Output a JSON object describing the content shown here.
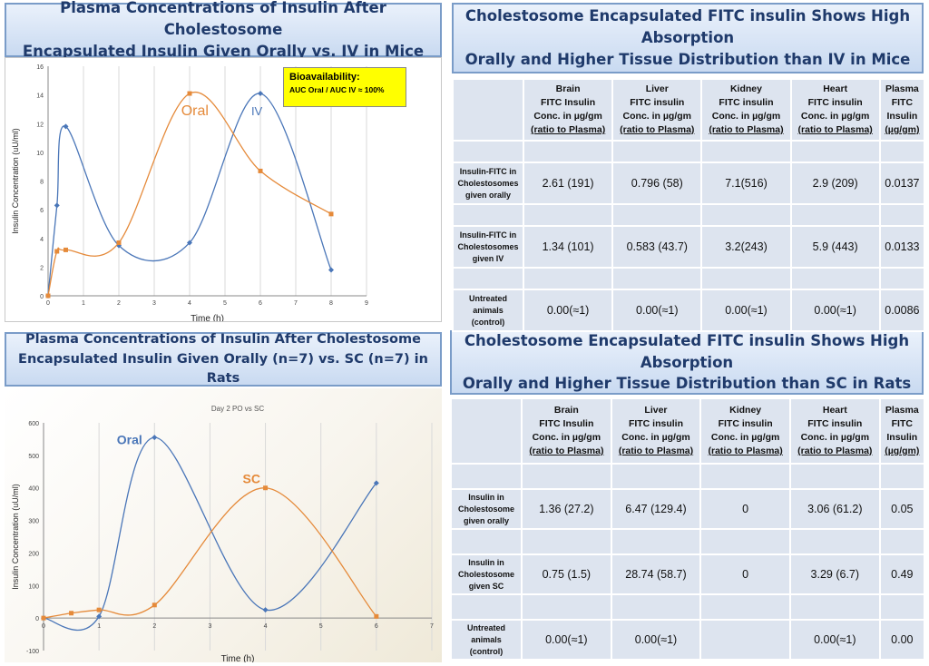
{
  "headers": {
    "mice_chart": [
      "Plasma Concentrations of Insulin After Cholestosome",
      "Encapsulated Insulin Given Orally vs. IV in Mice"
    ],
    "mice_table": [
      "Cholestosome Encapsulated FITC insulin Shows High Absorption",
      "Orally and Higher Tissue Distribution than IV in Mice"
    ],
    "rats_chart": [
      "Plasma Concentrations of Insulin After Cholestosome",
      "Encapsulated Insulin Given Orally (n=7) vs. SC (n=7) in Rats"
    ],
    "rats_table": [
      "Cholestosome Encapsulated FITC insulin Shows High Absorption",
      "Orally and Higher Tissue Distribution than SC in Rats"
    ]
  },
  "colors": {
    "blue": "#4a76b8",
    "orange": "#e58a3a",
    "header_text": "#1f3a6b",
    "annotation_bg": "#ffff00"
  },
  "chart_data": [
    {
      "type": "line",
      "title": "",
      "xlabel": "Time (h)",
      "ylabel": "Insulin Concentration (uU/ml)",
      "xlim": [
        0,
        9
      ],
      "ylim": [
        0,
        16
      ],
      "xticks": [
        "0",
        "1",
        "2",
        "3",
        "4",
        "5",
        "6",
        "7",
        "8",
        "9"
      ],
      "yticks": [
        "0",
        "2",
        "4",
        "6",
        "8",
        "10",
        "12",
        "14",
        "16"
      ],
      "series": [
        {
          "name": "IV",
          "color": "#4a76b8",
          "marker": "diamond",
          "x": [
            0,
            0.25,
            0.5,
            2,
            4,
            6,
            8
          ],
          "y": [
            0,
            6.3,
            11.8,
            3.5,
            3.7,
            14.1,
            1.8
          ]
        },
        {
          "name": "Oral",
          "color": "#e58a3a",
          "marker": "square",
          "x": [
            0,
            0.25,
            0.5,
            2,
            4,
            6,
            8
          ],
          "y": [
            0,
            3.1,
            3.2,
            3.7,
            14.1,
            8.7,
            5.7
          ]
        }
      ],
      "labels": {
        "oral": "Oral",
        "iv": "IV"
      },
      "annotation": {
        "title": "Bioavailability:",
        "text": "AUC Oral / AUC IV ≈ 100%"
      }
    },
    {
      "type": "line",
      "title": "Day 2 PO vs SC",
      "xlabel": "Time (h)",
      "ylabel": "Insulin Concentration (uU/ml)",
      "xlim": [
        0,
        7
      ],
      "ylim": [
        -100,
        600
      ],
      "xticks": [
        "0",
        "1",
        "2",
        "3",
        "4",
        "5",
        "6",
        "7"
      ],
      "yticks": [
        "-100",
        "0",
        "100",
        "200",
        "300",
        "400",
        "500",
        "600"
      ],
      "series": [
        {
          "name": "Oral",
          "color": "#4a76b8",
          "marker": "diamond",
          "x": [
            0,
            1,
            2,
            4,
            6
          ],
          "y": [
            0,
            5,
            555,
            25,
            415
          ]
        },
        {
          "name": "SC",
          "color": "#e58a3a",
          "marker": "square",
          "x": [
            0,
            0.5,
            1,
            2,
            4,
            6
          ],
          "y": [
            0,
            15,
            25,
            40,
            400,
            5
          ]
        }
      ],
      "labels": {
        "oral": "Oral",
        "sc": "SC"
      }
    }
  ],
  "mice_table": {
    "columns": [
      {
        "lines": [
          "Brain",
          "FITC Insulin",
          "Conc. in µg/gm",
          "(ratio to Plasma)"
        ]
      },
      {
        "lines": [
          "Liver",
          "FITC insulin",
          "Conc. in µg/gm",
          "(ratio to Plasma)"
        ]
      },
      {
        "lines": [
          "Kidney",
          "FITC insulin",
          "Conc. in µg/gm",
          "(ratio to Plasma)"
        ]
      },
      {
        "lines": [
          "Heart",
          "FITC insulin",
          "Conc. in µg/gm",
          "(ratio to Plasma)"
        ]
      },
      {
        "lines": [
          "Plasma",
          "FITC",
          "Insulin",
          "(µg/gm)"
        ]
      }
    ],
    "rows": [
      {
        "label": [
          "Insulin-FITC in",
          "Cholestosomes",
          "given orally"
        ],
        "values": [
          "2.61 (191)",
          "0.796 (58)",
          "7.1(516)",
          "2.9 (209)",
          "0.0137"
        ]
      },
      {
        "label": [
          "Insulin-FITC in",
          "Cholestosomes",
          "given IV"
        ],
        "values": [
          "1.34 (101)",
          "0.583 (43.7)",
          "3.2(243)",
          "5.9 (443)",
          "0.0133"
        ]
      },
      {
        "label": [
          "Untreated",
          "animals",
          "(control)"
        ],
        "values": [
          "0.00(≈1)",
          "0.00(≈1)",
          "0.00(≈1)",
          "0.00(≈1)",
          "0.0086"
        ]
      }
    ]
  },
  "rats_table": {
    "columns": [
      {
        "lines": [
          "Brain",
          "FITC Insulin",
          "Conc. in µg/gm",
          "(ratio to Plasma)"
        ]
      },
      {
        "lines": [
          "Liver",
          "FITC insulin",
          "Conc. in µg/gm",
          "(ratio to Plasma)"
        ]
      },
      {
        "lines": [
          "Kidney",
          "FITC insulin",
          "Conc. in µg/gm",
          "(ratio to Plasma)"
        ]
      },
      {
        "lines": [
          "Heart",
          "FITC insulin",
          "Conc. in µg/gm",
          "(ratio to Plasma)"
        ]
      },
      {
        "lines": [
          "Plasma",
          "FITC",
          "Insulin",
          "(µg/gm)"
        ]
      }
    ],
    "rows": [
      {
        "label": [
          "Insulin in",
          "Cholestosome",
          "given orally"
        ],
        "values": [
          "1.36 (27.2)",
          "6.47 (129.4)",
          "0",
          "3.06 (61.2)",
          "0.05"
        ]
      },
      {
        "label": [
          "Insulin in",
          "Cholestosome",
          "given SC"
        ],
        "values": [
          "0.75 (1.5)",
          "28.74 (58.7)",
          "0",
          "3.29 (6.7)",
          "0.49"
        ]
      },
      {
        "label": [
          "Untreated",
          "animals",
          "(control)"
        ],
        "values": [
          "0.00(≈1)",
          "0.00(≈1)",
          "",
          "0.00(≈1)",
          "0.00"
        ]
      }
    ]
  }
}
